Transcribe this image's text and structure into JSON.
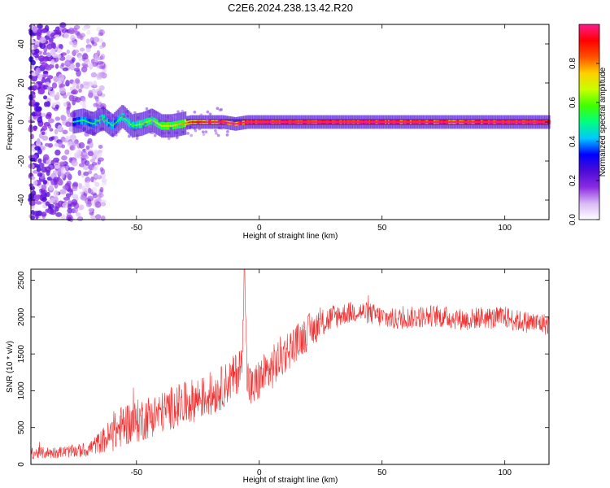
{
  "chart_data": [
    {
      "type": "heatmap",
      "title": "C2E6.2024.238.13.42.R20",
      "xlabel": "Height of straight line (km)",
      "ylabel": "Frequency (Hz)",
      "xlim": [
        -93,
        118
      ],
      "ylim": [
        -50,
        50
      ],
      "x_ticks": [
        -50,
        0,
        50,
        100
      ],
      "y_ticks": [
        -40,
        -20,
        0,
        20,
        40
      ],
      "colorbar": {
        "label": "Normalized spectral amplitude",
        "range": [
          0.0,
          1.0
        ],
        "ticks": [
          0.0,
          0.2,
          0.4,
          0.6,
          0.8
        ],
        "tick_labels": [
          "0.0",
          "0.2",
          "0.4",
          "0.6",
          "0.8"
        ],
        "colormap": [
          "#ffffff",
          "#d9b8f5",
          "#8a2be2",
          "#4b0bd6",
          "#0000ff",
          "#00c8ff",
          "#00ff80",
          "#40ff00",
          "#c8ff00",
          "#ffd000",
          "#ff5000",
          "#ff0000",
          "#ff1a8c"
        ]
      },
      "center_line": {
        "heights": [
          -76,
          -72,
          -68,
          -64,
          -60,
          -56,
          -52,
          -48,
          -44,
          -40,
          -36,
          -32,
          -28,
          -24,
          -20,
          -15,
          -10,
          -5,
          0,
          10,
          20,
          40,
          60,
          80,
          100,
          118
        ],
        "frequency": [
          0,
          1,
          -1,
          2,
          -2,
          3,
          -2,
          -1,
          1,
          -2,
          -2,
          -1,
          0,
          0,
          0,
          0,
          -1,
          0,
          0,
          0,
          0,
          0,
          0,
          0,
          0,
          0
        ],
        "amplitude": [
          0.35,
          0.4,
          0.4,
          0.45,
          0.4,
          0.45,
          0.45,
          0.5,
          0.5,
          0.55,
          0.6,
          0.6,
          0.75,
          0.8,
          0.85,
          0.9,
          0.85,
          0.9,
          0.95,
          0.95,
          0.95,
          0.95,
          0.9,
          0.9,
          0.95,
          0.95
        ]
      },
      "noise_region": {
        "x_range": [
          -93,
          -63
        ],
        "y_range": [
          -50,
          50
        ],
        "amplitude_range": [
          0.05,
          0.25
        ]
      }
    },
    {
      "type": "line",
      "xlabel": "Height of straight line (km)",
      "ylabel": "SNR (10 * v/v)",
      "xlim": [
        -93,
        118
      ],
      "ylim": [
        0,
        2650
      ],
      "x_ticks": [
        -50,
        0,
        50,
        100
      ],
      "y_ticks": [
        0,
        500,
        1000,
        1500,
        2000,
        2500
      ],
      "color": "#f03030",
      "series": [
        {
          "x": [
            -93,
            -85,
            -80,
            -75,
            -70,
            -65,
            -60,
            -55,
            -50,
            -45,
            -40,
            -35,
            -30,
            -25,
            -20,
            -15,
            -10,
            -7,
            -6,
            -5,
            -3,
            0,
            5,
            10,
            15,
            20,
            25,
            30,
            35,
            40,
            45,
            50,
            55,
            60,
            65,
            70,
            75,
            80,
            85,
            90,
            95,
            100,
            105,
            110,
            118
          ],
          "values": [
            150,
            160,
            170,
            180,
            200,
            300,
            400,
            550,
            580,
            650,
            700,
            780,
            820,
            900,
            920,
            1050,
            1200,
            1350,
            2650,
            1200,
            1000,
            1150,
            1300,
            1500,
            1650,
            1800,
            1900,
            2000,
            2050,
            2080,
            2050,
            2000,
            1970,
            1990,
            2000,
            2020,
            2000,
            1980,
            1960,
            2000,
            1980,
            2000,
            1950,
            1930,
            1900
          ],
          "amplitude": [
            80,
            80,
            80,
            90,
            100,
            150,
            250,
            300,
            300,
            300,
            280,
            300,
            300,
            300,
            280,
            300,
            300,
            300,
            0,
            350,
            300,
            300,
            300,
            300,
            250,
            250,
            200,
            180,
            150,
            150,
            150,
            150,
            150,
            150,
            150,
            150,
            150,
            150,
            150,
            150,
            150,
            150,
            150,
            150,
            150
          ]
        }
      ]
    }
  ]
}
